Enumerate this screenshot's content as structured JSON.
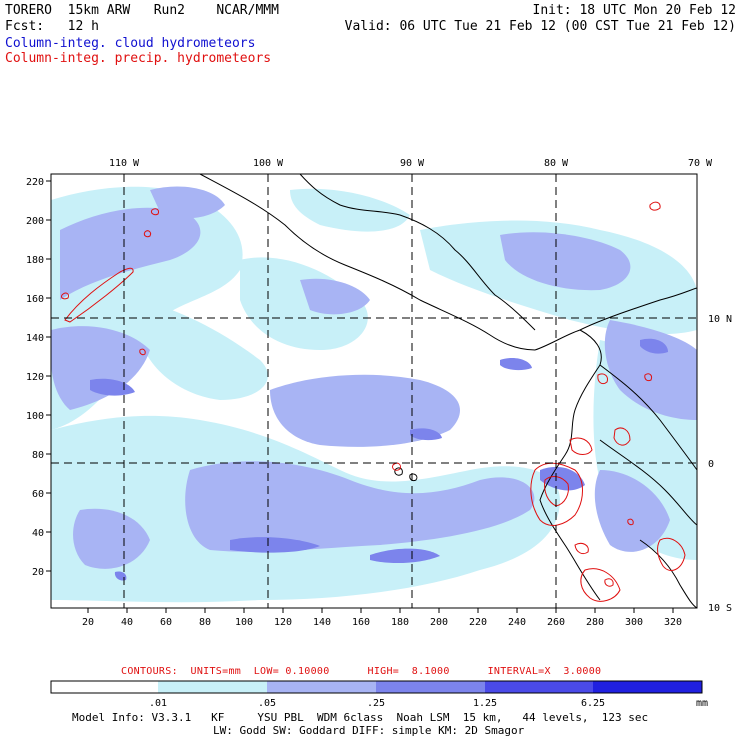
{
  "header": {
    "model": "TORERO  15km ARW   Run2    NCAR/MMM",
    "init": "Init: 18 UTC Mon 20 Feb 12",
    "fcst": "Fcst:   12 h",
    "valid": "Valid: 06 UTC Tue 21 Feb 12 (00 CST Tue 21 Feb 12)",
    "field1": "Column-integ. cloud hydrometeors",
    "field2": "Column-integ. precip. hydrometeors"
  },
  "map": {
    "lon_labels": [
      "110 W",
      "100 W",
      "90 W",
      "80 W",
      "70 W"
    ],
    "lat_labels": [
      "10 N",
      "0",
      "10 S"
    ],
    "y_ticks": [
      "220",
      "200",
      "180",
      "160",
      "140",
      "120",
      "100",
      "80",
      "60",
      "40",
      "20"
    ],
    "x_ticks": [
      "20",
      "40",
      "60",
      "80",
      "100",
      "120",
      "140",
      "160",
      "180",
      "200",
      "220",
      "240",
      "260",
      "280",
      "300",
      "320"
    ],
    "colors": {
      "shade1": "#c8f0f8",
      "shade2": "#a8b4f4",
      "shade3": "#7c84ec",
      "shade4": "#4a4ae8",
      "shade5": "#2020e0",
      "contour": "#e01010",
      "coast": "#000000"
    }
  },
  "contours": {
    "text": "CONTOURS:  UNITS=mm  LOW= 0.10000      HIGH=  8.1000      INTERVAL=X  3.0000"
  },
  "colorbar": {
    "labels": [
      ".01",
      ".05",
      ".25",
      "1.25",
      "6.25"
    ],
    "unit": "mm",
    "colors": [
      "#ffffff",
      "#c8f0f8",
      "#a8b4f4",
      "#7c84ec",
      "#4a4ae8",
      "#2020e0"
    ]
  },
  "footer": {
    "line1": "Model Info: V3.3.1   KF     YSU PBL  WDM 6class  Noah LSM  15 km,   44 levels,  123 sec",
    "line2": "LW: Godd SW: Goddard DIFF: simple KM: 2D Smagor"
  }
}
